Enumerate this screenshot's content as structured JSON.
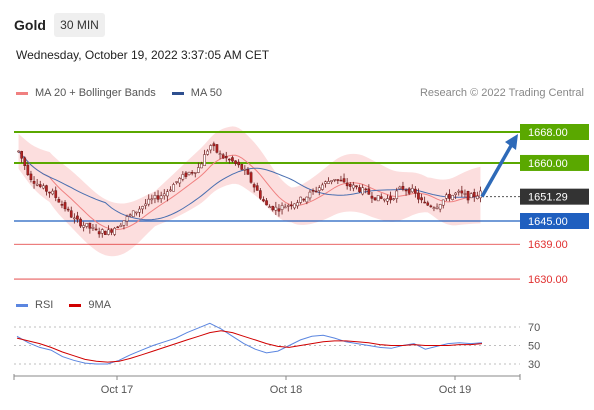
{
  "header": {
    "instrument": "Gold",
    "interval": "30 MIN",
    "datetime": "Wednesday, October 19, 2022 3:37:05 AM CET"
  },
  "legend": {
    "ma20": "MA 20 + Bollinger Bands",
    "ma50": "MA 50",
    "credit": "Research © 2022 Trading Central"
  },
  "colors": {
    "green": "#5aa800",
    "blue": "#1f5fbf",
    "red": "#e03030",
    "ma20": "#f08080",
    "ma50": "#4a6fb0",
    "band": "#fbd3d3",
    "candle": "#b22222",
    "rsi": "#5b86e0",
    "nine_ma": "#d00000",
    "arrow": "#2e6ab8",
    "price_tag": "#333333"
  },
  "levels": [
    {
      "label": "1668.00",
      "value": 1668,
      "kind": "resistance"
    },
    {
      "label": "1660.00",
      "value": 1660,
      "kind": "resistance"
    },
    {
      "label": "1651.29",
      "value": 1651.29,
      "kind": "last"
    },
    {
      "label": "1645.00",
      "value": 1645,
      "kind": "pivot"
    },
    {
      "label": "1639.00",
      "value": 1639,
      "kind": "support"
    },
    {
      "label": "1630.00",
      "value": 1630,
      "kind": "support"
    }
  ],
  "rsi_panel": {
    "rsi_label": "RSI",
    "ma_label": "9MA",
    "ticks": [
      "70",
      "50",
      "30"
    ]
  },
  "x_axis": {
    "labels": [
      "Oct 17",
      "Oct 18",
      "Oct 19"
    ]
  },
  "chart_data": {
    "type": "candlestick",
    "y_price": [
      1663.0,
      1656.5,
      1653.6,
      1652.2,
      1648.9,
      1645.2,
      1643.7,
      1642.2,
      1642.2,
      1644.4,
      1646.6,
      1648.9,
      1650.7,
      1652.2,
      1655.1,
      1657.3,
      1658.8,
      1664.7,
      1661.7,
      1660.3,
      1658.1,
      1653.6,
      1648.9,
      1648.2,
      1649.3,
      1650.4,
      1652.2,
      1654.4,
      1656.2,
      1654.4,
      1653.6,
      1652.2,
      1650.7,
      1650.7,
      1653.6,
      1652.6,
      1649.3,
      1648.9,
      1651.1,
      1652.2,
      1651.1,
      1652.2
    ],
    "rsi": [
      60,
      53,
      48,
      45,
      38,
      34,
      31,
      30,
      30,
      34,
      40,
      45,
      50,
      54,
      58,
      64,
      69,
      74,
      68,
      60,
      52,
      46,
      42,
      44,
      50,
      56,
      60,
      61,
      58,
      54,
      52,
      50,
      48,
      47,
      50,
      52,
      46,
      49,
      52,
      53,
      52,
      53
    ],
    "nine_ma": [
      58,
      55,
      52,
      48,
      43,
      39,
      35,
      33,
      32,
      33,
      36,
      40,
      44,
      48,
      52,
      56,
      60,
      64,
      66,
      64,
      60,
      56,
      52,
      49,
      48,
      50,
      52,
      54,
      55,
      55,
      54,
      53,
      51,
      50,
      50,
      51,
      50,
      50,
      50,
      51,
      51,
      52
    ]
  }
}
